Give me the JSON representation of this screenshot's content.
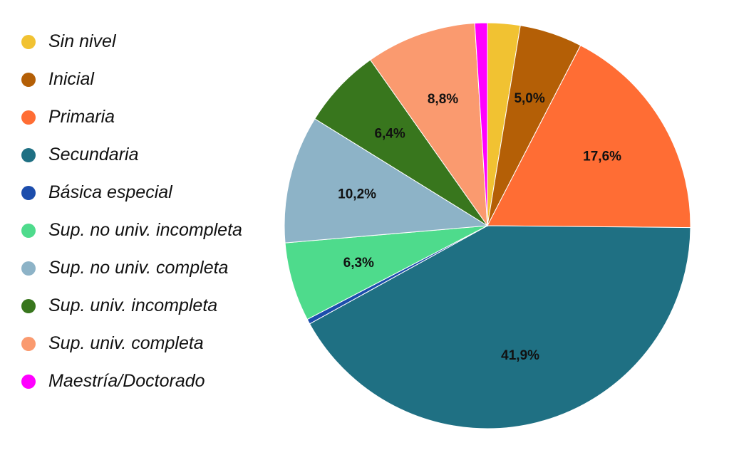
{
  "chart_data": {
    "type": "pie",
    "start_angle_deg": 0,
    "direction": "clockwise",
    "legend_position": "left",
    "categories": [
      "Sin nivel",
      "Inicial",
      "Primaria",
      "Secundaria",
      "Básica especial",
      "Sup. no univ. incompleta",
      "Sup. no univ. completa",
      "Sup. univ. incompleta",
      "Sup. univ. completa",
      "Maestría/Doctorado"
    ],
    "values": [
      2.6,
      5.0,
      17.6,
      41.9,
      0.4,
      6.3,
      10.2,
      6.4,
      8.8,
      1.0
    ],
    "value_labels": [
      "",
      "5,0%",
      "17,6%",
      "41,9%",
      "",
      "6,3%",
      "10,2%",
      "6,4%",
      "8,8%",
      ""
    ],
    "colors": [
      "#f1c232",
      "#b45f06",
      "#ff6d34",
      "#1f7083",
      "#1c4dac",
      "#4edb8c",
      "#8db3c7",
      "#38761d",
      "#fa9a6f",
      "#ff00ff"
    ]
  }
}
